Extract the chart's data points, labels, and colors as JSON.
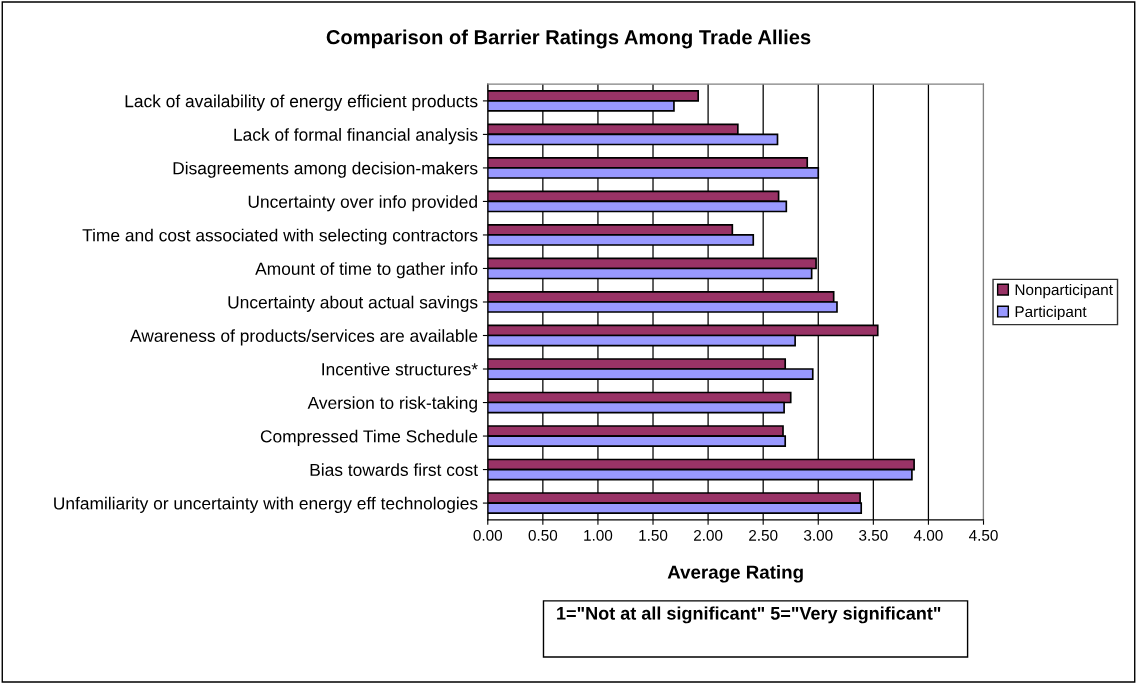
{
  "chart_data": {
    "type": "bar",
    "orientation": "horizontal",
    "title": "Comparison of Barrier Ratings Among Trade Allies",
    "xlabel": "Average Rating",
    "categories": [
      "Lack of availability of energy efficient products",
      "Lack of formal financial analysis",
      "Disagreements among decision-makers",
      "Uncertainty over info provided",
      "Time and cost associated with selecting contractors",
      "Amount of time to gather info",
      "Uncertainty about actual savings",
      "Awareness of products/services are available",
      "Incentive structures*",
      "Aversion to risk-taking",
      "Compressed Time Schedule",
      "Bias towards first cost",
      "Unfamiliarity or uncertainty with energy eff technologies"
    ],
    "series": [
      {
        "name": "Nonparticipant",
        "color": "#993366",
        "values": [
          1.91,
          2.27,
          2.9,
          2.64,
          2.22,
          2.98,
          3.14,
          3.54,
          2.7,
          2.75,
          2.68,
          3.87,
          3.38
        ]
      },
      {
        "name": "Participant",
        "color": "#9999ff",
        "values": [
          1.69,
          2.63,
          3.0,
          2.71,
          2.41,
          2.94,
          3.17,
          2.79,
          2.95,
          2.69,
          2.7,
          3.85,
          3.39
        ]
      }
    ],
    "xlim": [
      0,
      4.5
    ],
    "xticks": [
      {
        "value": 0,
        "label": "0.00"
      },
      {
        "value": 0.5,
        "label": "0.50"
      },
      {
        "value": 1,
        "label": "1.00"
      },
      {
        "value": 1.5,
        "label": "1.50"
      },
      {
        "value": 2,
        "label": "2.00"
      },
      {
        "value": 2.5,
        "label": "2.50"
      },
      {
        "value": 3,
        "label": "3.00"
      },
      {
        "value": 3.5,
        "label": "3.50"
      },
      {
        "value": 4,
        "label": "4.00"
      },
      {
        "value": 4.5,
        "label": "4.50"
      }
    ],
    "grid": "x",
    "legend": "right",
    "annotations": [
      "1=\"Not at all significant\" 5=\"Very significant\""
    ]
  }
}
